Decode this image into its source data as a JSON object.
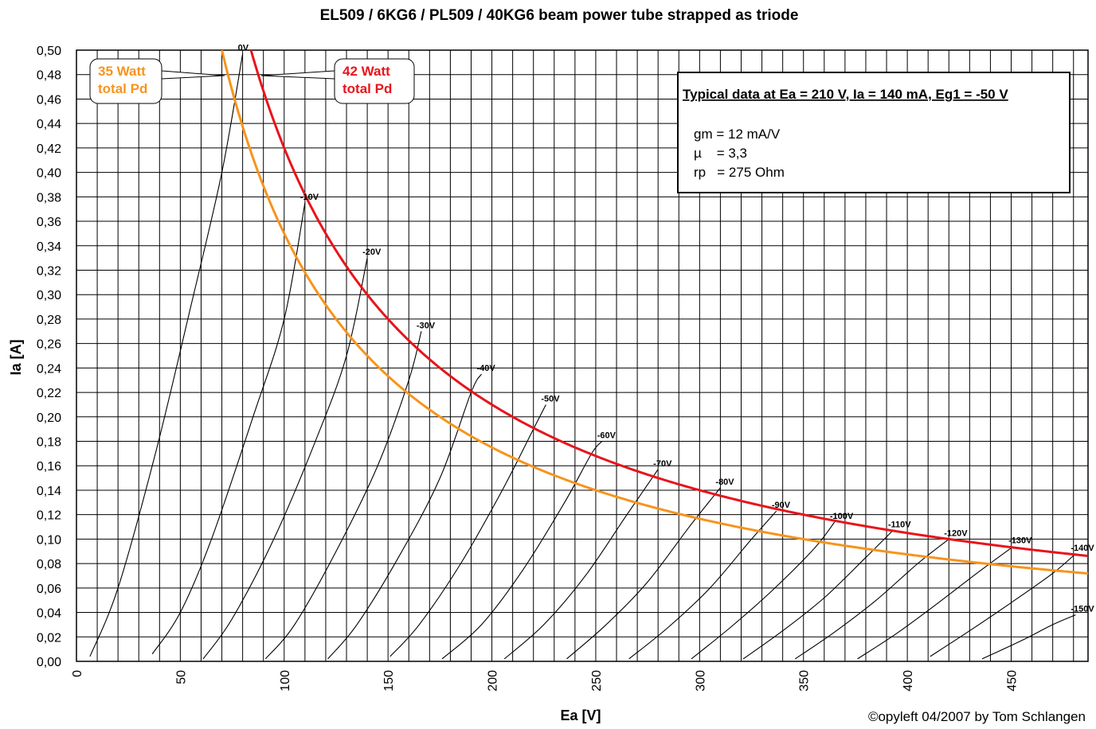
{
  "chart_data": {
    "type": "line",
    "title": "EL509 / 6KG6 / PL509 / 40KG6 beam power tube strapped as triode",
    "xlabel": "Ea [V]",
    "ylabel": "Ia [A]",
    "xlim": [
      0,
      487
    ],
    "ylim": [
      0,
      0.5
    ],
    "x_ticks": [
      "0",
      "50",
      "100",
      "150",
      "200",
      "250",
      "300",
      "350",
      "400",
      "450"
    ],
    "y_ticks": [
      "0,00",
      "0,02",
      "0,04",
      "0,06",
      "0,08",
      "0,10",
      "0,12",
      "0,14",
      "0,16",
      "0,18",
      "0,20",
      "0,22",
      "0,24",
      "0,26",
      "0,28",
      "0,30",
      "0,32",
      "0,34",
      "0,36",
      "0,38",
      "0,40",
      "0,42",
      "0,44",
      "0,46",
      "0,48",
      "0,50"
    ],
    "grid": true,
    "grid_x_step": 10,
    "grid_y_step": 0.02,
    "grid_curves": [
      {
        "name": "0V",
        "points": [
          [
            6.5,
            0.004
          ],
          [
            20,
            0.06
          ],
          [
            38,
            0.17
          ],
          [
            55,
            0.29
          ],
          [
            70,
            0.4
          ],
          [
            80,
            0.497
          ]
        ]
      },
      {
        "name": "-10V",
        "points": [
          [
            36.5,
            0.006
          ],
          [
            50,
            0.04
          ],
          [
            65,
            0.1
          ],
          [
            85,
            0.2
          ],
          [
            100,
            0.28
          ],
          [
            110,
            0.375
          ]
        ]
      },
      {
        "name": "-20V",
        "points": [
          [
            61,
            0.002
          ],
          [
            75,
            0.035
          ],
          [
            95,
            0.1
          ],
          [
            115,
            0.18
          ],
          [
            130,
            0.25
          ],
          [
            140,
            0.33
          ]
        ]
      },
      {
        "name": "-30V",
        "points": [
          [
            91,
            0.002
          ],
          [
            105,
            0.03
          ],
          [
            125,
            0.09
          ],
          [
            145,
            0.16
          ],
          [
            160,
            0.23
          ],
          [
            166,
            0.27
          ]
        ]
      },
      {
        "name": "-40V",
        "points": [
          [
            121,
            0.002
          ],
          [
            135,
            0.03
          ],
          [
            155,
            0.085
          ],
          [
            175,
            0.15
          ],
          [
            190,
            0.22
          ],
          [
            195,
            0.235
          ]
        ]
      },
      {
        "name": "-50V",
        "points": [
          [
            151,
            0.004
          ],
          [
            165,
            0.03
          ],
          [
            185,
            0.08
          ],
          [
            205,
            0.14
          ],
          [
            220,
            0.19
          ],
          [
            226,
            0.21
          ]
        ]
      },
      {
        "name": "-60V",
        "points": [
          [
            176,
            0.002
          ],
          [
            195,
            0.03
          ],
          [
            215,
            0.075
          ],
          [
            235,
            0.13
          ],
          [
            248,
            0.17
          ],
          [
            253,
            0.18
          ]
        ]
      },
      {
        "name": "-70V",
        "points": [
          [
            206,
            0.002
          ],
          [
            225,
            0.03
          ],
          [
            245,
            0.07
          ],
          [
            265,
            0.12
          ],
          [
            280,
            0.157
          ]
        ]
      },
      {
        "name": "-80V",
        "points": [
          [
            236,
            0.002
          ],
          [
            255,
            0.03
          ],
          [
            275,
            0.065
          ],
          [
            295,
            0.11
          ],
          [
            310,
            0.142
          ]
        ]
      },
      {
        "name": "-90V",
        "points": [
          [
            266,
            0.002
          ],
          [
            285,
            0.028
          ],
          [
            305,
            0.06
          ],
          [
            325,
            0.1
          ],
          [
            337,
            0.123
          ]
        ]
      },
      {
        "name": "-100V",
        "points": [
          [
            296,
            0.002
          ],
          [
            315,
            0.028
          ],
          [
            335,
            0.058
          ],
          [
            355,
            0.092
          ],
          [
            365,
            0.114
          ]
        ]
      },
      {
        "name": "-110V",
        "points": [
          [
            321,
            0.002
          ],
          [
            340,
            0.025
          ],
          [
            360,
            0.052
          ],
          [
            380,
            0.085
          ],
          [
            393,
            0.107
          ]
        ]
      },
      {
        "name": "-120V",
        "points": [
          [
            346,
            0.002
          ],
          [
            365,
            0.024
          ],
          [
            385,
            0.05
          ],
          [
            405,
            0.08
          ],
          [
            420,
            0.1
          ]
        ]
      },
      {
        "name": "-130V",
        "points": [
          [
            376,
            0.002
          ],
          [
            395,
            0.023
          ],
          [
            415,
            0.048
          ],
          [
            435,
            0.074
          ],
          [
            451,
            0.094
          ]
        ]
      },
      {
        "name": "-140V",
        "points": [
          [
            411,
            0.004
          ],
          [
            430,
            0.025
          ],
          [
            450,
            0.048
          ],
          [
            470,
            0.072
          ],
          [
            481,
            0.088
          ]
        ]
      },
      {
        "name": "-150V",
        "points": [
          [
            436,
            0.002
          ],
          [
            455,
            0.017
          ],
          [
            470,
            0.03
          ],
          [
            481,
            0.038
          ]
        ]
      }
    ],
    "dissipation_curves": [
      {
        "name": "35 Watt total Pd",
        "watts": 35,
        "color": "#f7941d",
        "x_range": [
          70,
          487
        ]
      },
      {
        "name": "42 Watt total Pd",
        "watts": 42,
        "color": "#e8141b",
        "x_range": [
          84,
          487
        ]
      }
    ],
    "callouts": [
      {
        "lines": [
          "35 Watt",
          "total Pd"
        ],
        "color": "#f7941d",
        "anchor": [
          72,
          0.49
        ]
      },
      {
        "lines": [
          "42 Watt",
          "total Pd"
        ],
        "color": "#e8141b",
        "anchor": [
          90,
          0.49
        ]
      }
    ],
    "info_box": {
      "heading": "Typical data at Ea = 210 V, Ia = 140 mA, Eg1 = -50 V",
      "lines": [
        "gm = 12 mA/V",
        "µ    = 3,3",
        "rp   = 275 Ohm"
      ]
    },
    "credit": "©opyleft 04/2007 by Tom Schlangen"
  }
}
